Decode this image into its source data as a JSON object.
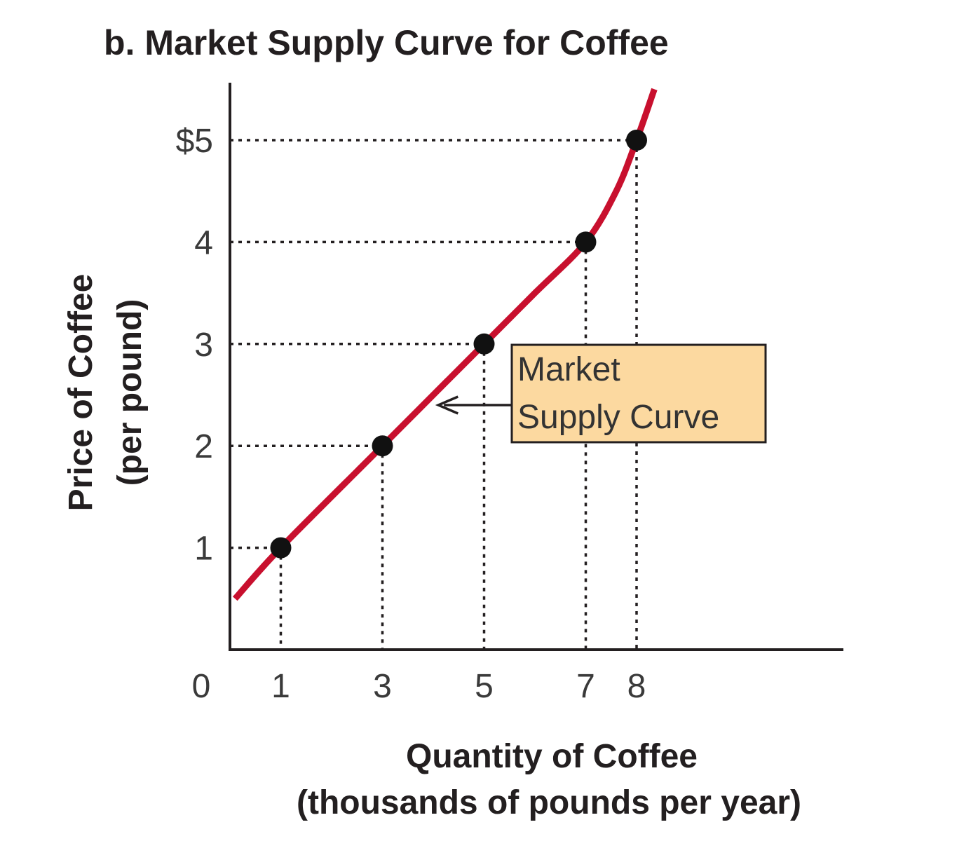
{
  "chart_data": {
    "type": "line",
    "title": "b. Market Supply Curve for Coffee",
    "xlabel_line1": "Quantity of Coffee",
    "xlabel_line2": "(thousands of pounds per year)",
    "ylabel_line1": "Price of Coffee",
    "ylabel_line2": "(per pound)",
    "xlim": [
      0,
      12
    ],
    "ylim": [
      0,
      5.5
    ],
    "origin_label": "0",
    "x_ticks": [
      {
        "value": 1,
        "label": "1"
      },
      {
        "value": 3,
        "label": "3"
      },
      {
        "value": 5,
        "label": "5"
      },
      {
        "value": 7,
        "label": "7"
      },
      {
        "value": 8,
        "label": "8"
      }
    ],
    "y_ticks": [
      {
        "value": 1,
        "label": "1"
      },
      {
        "value": 2,
        "label": "2"
      },
      {
        "value": 3,
        "label": "3"
      },
      {
        "value": 4,
        "label": "4"
      },
      {
        "value": 5,
        "label": "$5"
      }
    ],
    "series": [
      {
        "color": "#c8102e",
        "points": [
          {
            "x": 1,
            "y": 1
          },
          {
            "x": 3,
            "y": 2
          },
          {
            "x": 5,
            "y": 3
          },
          {
            "x": 7,
            "y": 4
          },
          {
            "x": 8,
            "y": 5
          }
        ],
        "curve": [
          {
            "x": 0.1,
            "y": 0.5
          },
          {
            "x": 1,
            "y": 1
          },
          {
            "x": 3,
            "y": 2
          },
          {
            "x": 5,
            "y": 3
          },
          {
            "x": 6,
            "y": 3.5
          },
          {
            "x": 7,
            "y": 4
          },
          {
            "x": 7.6,
            "y": 4.5
          },
          {
            "x": 8,
            "y": 5
          },
          {
            "x": 8.35,
            "y": 5.5
          }
        ]
      }
    ],
    "guides": true,
    "annotation": {
      "line1": "Market",
      "line2": "Supply Curve",
      "arrow_target": {
        "x": 4.1,
        "y": 2.45
      },
      "fill": "#fcd9a0"
    }
  }
}
